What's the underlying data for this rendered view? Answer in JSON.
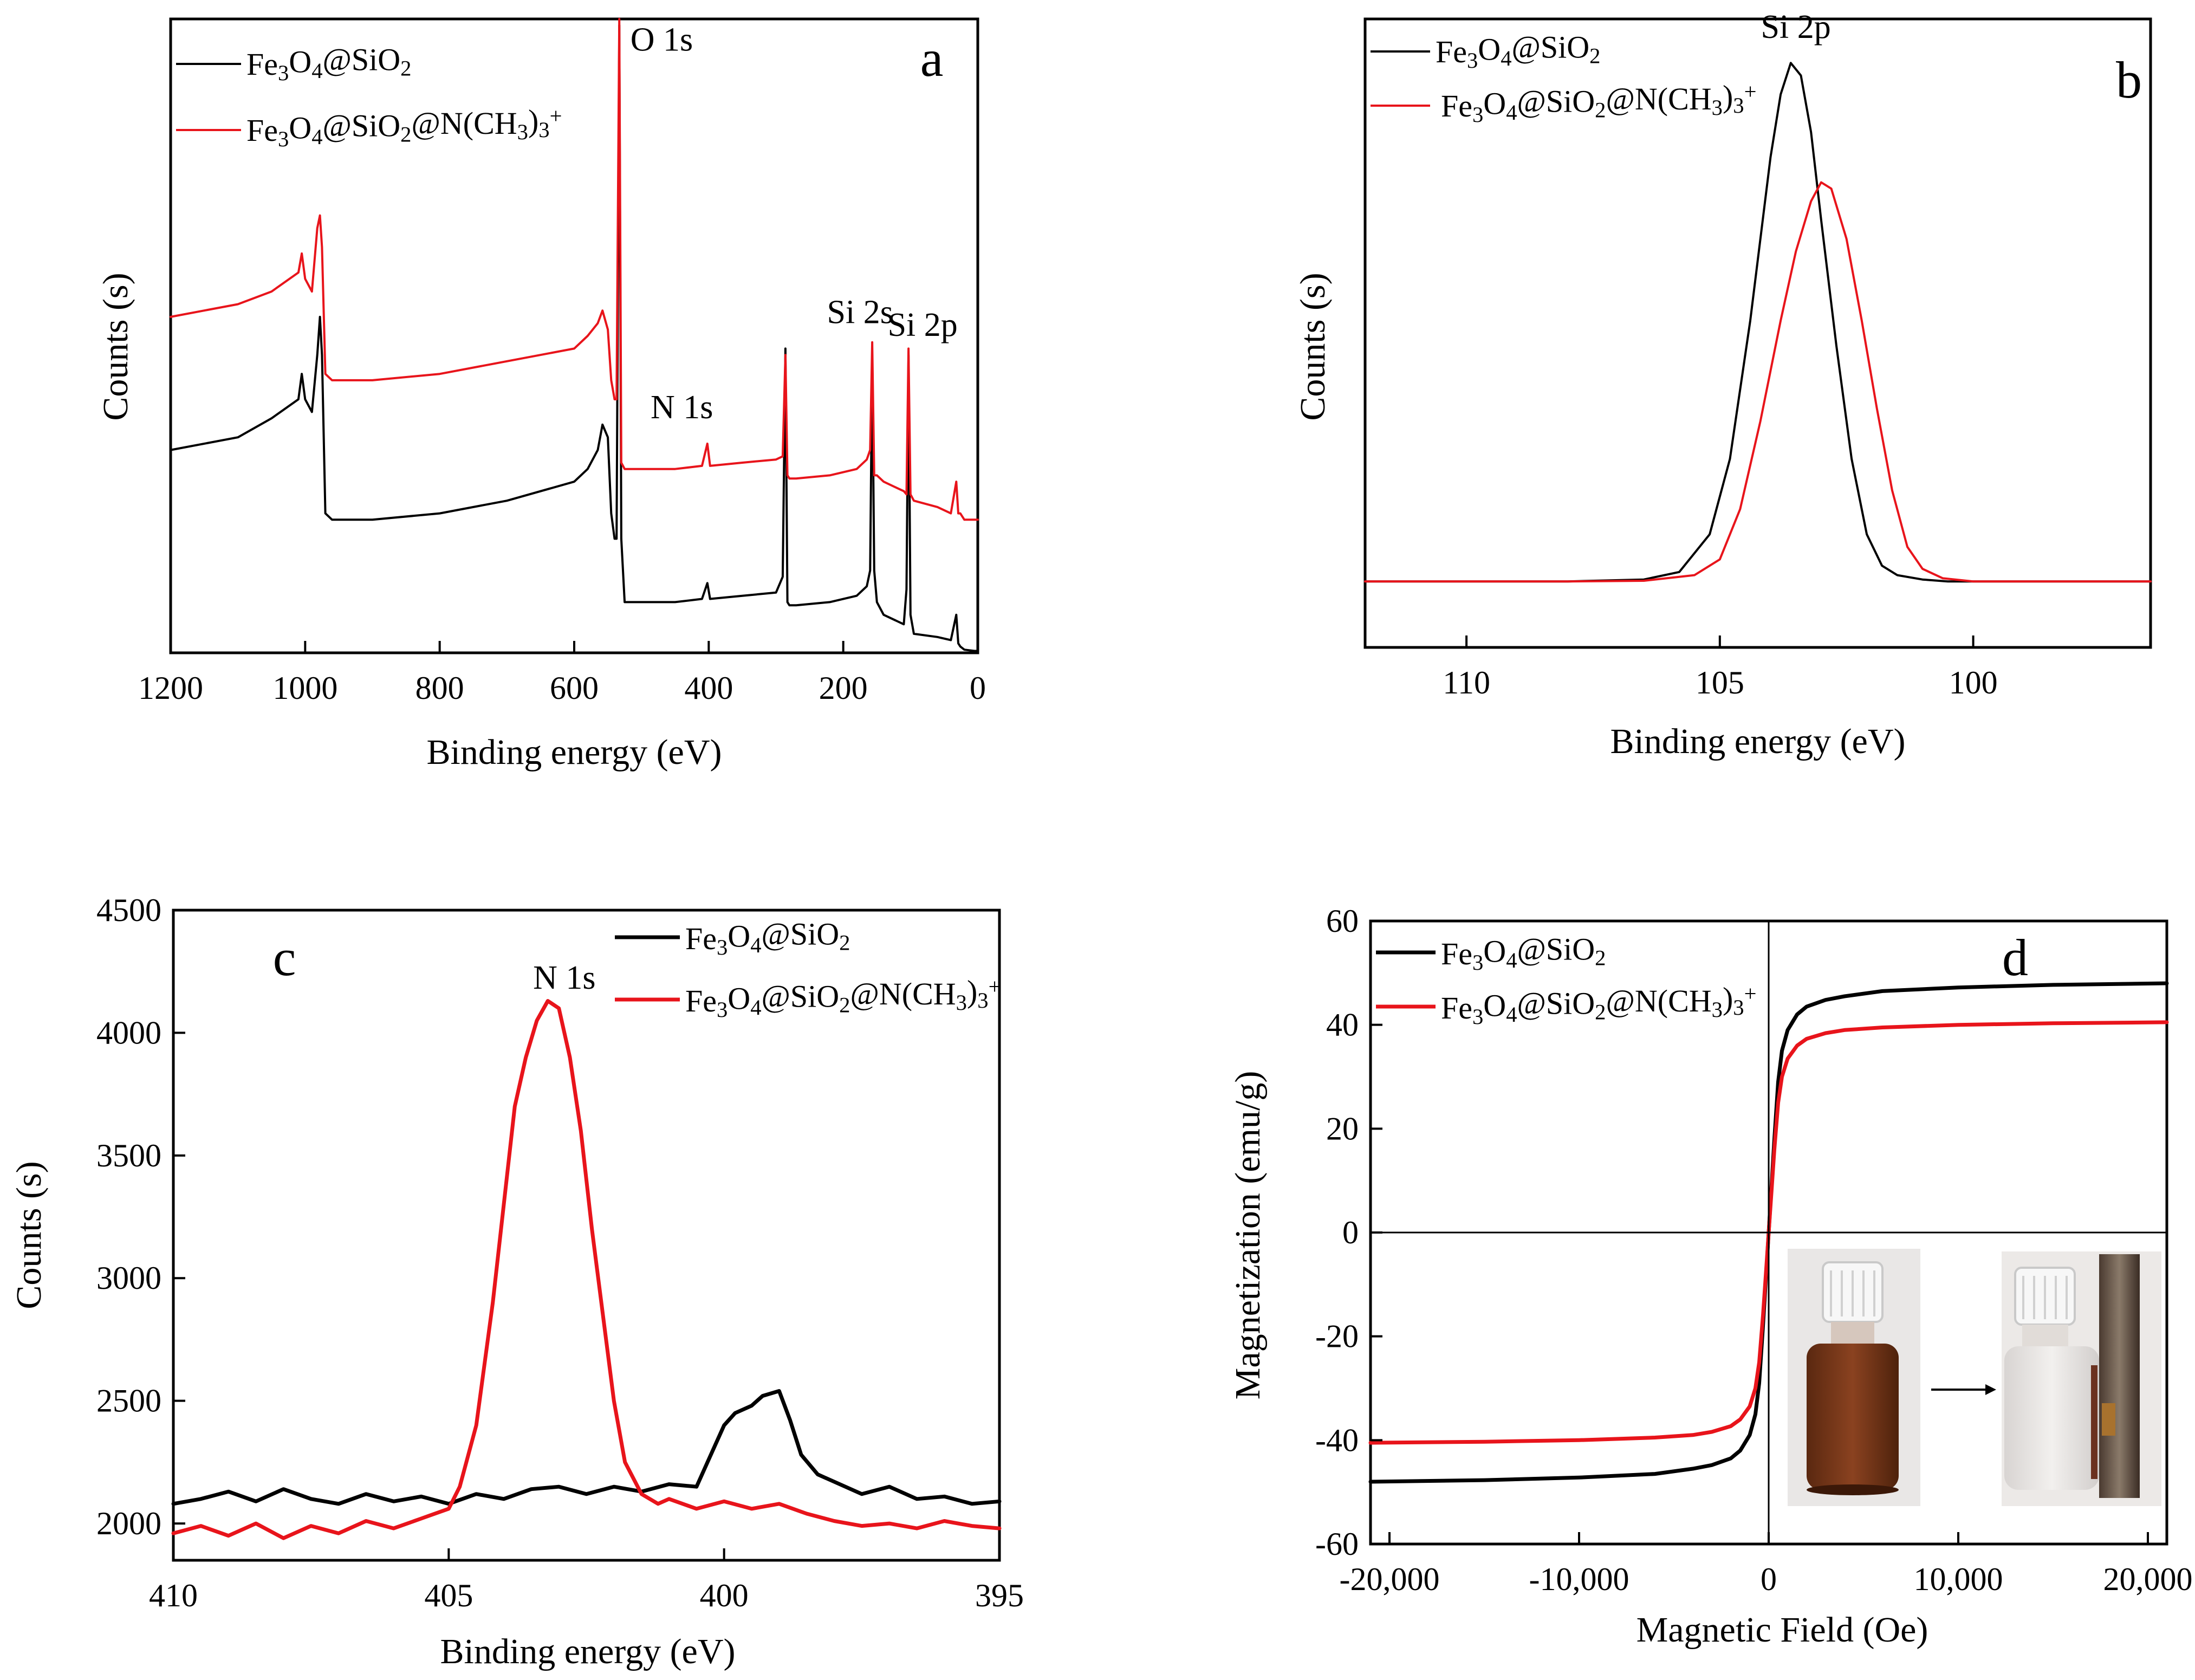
{
  "legend": {
    "series_a": "Fe3O4@SiO2",
    "series_b": "Fe3O4@SiO2@N(CH3)3+"
  },
  "colors": {
    "series_a": "#000000",
    "series_b": "#e8141b",
    "axis": "#000000"
  },
  "chart_data": [
    {
      "id": "a",
      "type": "line",
      "panel_label": "a",
      "xlabel": "Binding energy (eV)",
      "ylabel": "Counts (s)",
      "xlim": [
        1200,
        0
      ],
      "ylim": [
        0,
        100
      ],
      "x_ticks": [
        1200,
        1000,
        800,
        600,
        400,
        200,
        0
      ],
      "x_tick_labels": [
        "1200",
        "1000",
        "800",
        "600",
        "400",
        "200",
        "0"
      ],
      "y_ticks": [],
      "annotations": [
        {
          "text": "O 1s",
          "x": 470,
          "y": 95
        },
        {
          "text": "N 1s",
          "x": 440,
          "y": 37
        },
        {
          "text": "Si 2s",
          "x": 175,
          "y": 52
        },
        {
          "text": "Si 2p",
          "x": 82,
          "y": 50
        }
      ],
      "series": [
        {
          "name": "Fe3O4@SiO2",
          "color": "#000000",
          "width": 4,
          "x": [
            1200,
            1100,
            1050,
            1010,
            1005,
            1000,
            990,
            982,
            978,
            975,
            970,
            960,
            900,
            800,
            700,
            600,
            580,
            565,
            558,
            550,
            545,
            540,
            537,
            533,
            530,
            525,
            520,
            500,
            450,
            410,
            402,
            398,
            350,
            300,
            290,
            286,
            283,
            280,
            270,
            220,
            180,
            165,
            160,
            157,
            154,
            150,
            140,
            120,
            110,
            106,
            103,
            100,
            95,
            60,
            40,
            32,
            29,
            26,
            20,
            5,
            0
          ],
          "y": [
            32,
            34,
            37,
            40,
            44,
            40,
            38,
            47,
            53,
            47,
            22,
            21,
            21,
            22,
            24,
            27,
            29,
            32,
            36,
            34,
            22,
            18,
            18,
            99,
            18,
            8,
            8,
            8,
            8,
            8.5,
            11,
            8.5,
            9,
            9.5,
            12,
            48,
            8,
            7.5,
            7.5,
            8,
            9,
            10.5,
            13,
            47,
            13,
            8,
            6,
            5,
            4.5,
            10,
            47,
            6,
            3,
            2.5,
            2,
            6,
            1.5,
            1,
            0.5,
            0.3,
            0.3
          ]
        },
        {
          "name": "Fe3O4@SiO2@N(CH3)3+",
          "color": "#e8141b",
          "width": 4,
          "x": [
            1200,
            1100,
            1050,
            1010,
            1005,
            1000,
            990,
            982,
            978,
            975,
            970,
            960,
            900,
            800,
            700,
            600,
            580,
            565,
            558,
            550,
            545,
            540,
            537,
            533,
            530,
            525,
            520,
            500,
            450,
            410,
            402,
            398,
            350,
            300,
            290,
            286,
            283,
            280,
            270,
            220,
            180,
            165,
            160,
            157,
            154,
            150,
            140,
            120,
            110,
            106,
            103,
            100,
            95,
            60,
            40,
            32,
            29,
            26,
            20,
            5,
            0
          ],
          "y": [
            53,
            55,
            57,
            60,
            63,
            59,
            57,
            67,
            69,
            64,
            44,
            43,
            43,
            44,
            46,
            48,
            50,
            52,
            54,
            51,
            43,
            40,
            40,
            100,
            30,
            29,
            29,
            29,
            29,
            29.5,
            33,
            29.5,
            30,
            30.5,
            31,
            47,
            28,
            27.5,
            27.5,
            28,
            29,
            30.5,
            32,
            49,
            28,
            28,
            27,
            26,
            25.5,
            25,
            48,
            25,
            24,
            23,
            22,
            27,
            22,
            22,
            21,
            21,
            21
          ]
        }
      ]
    },
    {
      "id": "b",
      "type": "line",
      "panel_label": "b",
      "xlabel": "Binding energy (eV)",
      "ylabel": "Counts (s)",
      "xlim": [
        112,
        96.5
      ],
      "ylim": [
        0,
        100
      ],
      "x_ticks": [
        110,
        105,
        100
      ],
      "x_tick_labels": [
        "110",
        "105",
        "100"
      ],
      "y_ticks": [],
      "annotations": [
        {
          "text": "Si 2p",
          "x": 103.5,
          "y": 97
        }
      ],
      "series": [
        {
          "name": "Fe3O4@SiO2",
          "color": "#000000",
          "width": 4,
          "x": [
            112,
            108,
            106.5,
            105.8,
            105.2,
            104.8,
            104.4,
            104.0,
            103.8,
            103.6,
            103.4,
            103.2,
            103.0,
            102.7,
            102.4,
            102.1,
            101.8,
            101.5,
            101.0,
            100.5,
            98,
            96.5
          ],
          "y": [
            10.5,
            10.5,
            10.8,
            12,
            18,
            30,
            52,
            78,
            88,
            93,
            91,
            82,
            68,
            48,
            30,
            18,
            13,
            11.5,
            10.8,
            10.5,
            10.5,
            10.5
          ]
        },
        {
          "name": "Fe3O4@SiO2@N(CH3)3+",
          "color": "#e8141b",
          "width": 4,
          "x": [
            112,
            108,
            106.5,
            105.5,
            105.0,
            104.6,
            104.2,
            103.8,
            103.5,
            103.2,
            103.0,
            102.8,
            102.5,
            102.2,
            101.9,
            101.6,
            101.3,
            101.0,
            100.6,
            100.0,
            98,
            96.5
          ],
          "y": [
            10.5,
            10.5,
            10.6,
            11.5,
            14,
            22,
            36,
            52,
            63,
            71,
            74,
            73,
            65,
            52,
            38,
            25,
            16,
            12.5,
            11,
            10.5,
            10.5,
            10.5
          ]
        }
      ]
    },
    {
      "id": "c",
      "type": "line",
      "panel_label": "c",
      "xlabel": "Binding energy (eV)",
      "ylabel": "Counts (s)",
      "xlim": [
        410,
        395
      ],
      "ylim": [
        1850,
        4500
      ],
      "x_ticks": [
        410,
        405,
        400,
        395
      ],
      "x_tick_labels": [
        "410",
        "405",
        "400",
        "395"
      ],
      "y_ticks": [
        2000,
        2500,
        3000,
        3500,
        4000,
        4500
      ],
      "y_tick_labels": [
        "2000",
        "2500",
        "3000",
        "3500",
        "4000",
        "4500"
      ],
      "annotations": [
        {
          "text": "N 1s",
          "x": 402.9,
          "y": 4180
        }
      ],
      "series": [
        {
          "name": "Fe3O4@SiO2",
          "color": "#000000",
          "width": 7,
          "x": [
            410,
            409.5,
            409,
            408.5,
            408,
            407.5,
            407,
            406.5,
            406,
            405.5,
            405,
            404.5,
            404,
            403.5,
            403,
            402.5,
            402,
            401.5,
            401,
            400.5,
            400.2,
            400.0,
            399.8,
            399.5,
            399.3,
            399.0,
            398.8,
            398.6,
            398.3,
            398.0,
            397.5,
            397,
            396.5,
            396,
            395.5,
            395
          ],
          "y": [
            2080,
            2100,
            2130,
            2090,
            2140,
            2100,
            2080,
            2120,
            2090,
            2110,
            2080,
            2120,
            2100,
            2140,
            2150,
            2120,
            2150,
            2130,
            2160,
            2150,
            2300,
            2400,
            2450,
            2480,
            2520,
            2540,
            2420,
            2280,
            2200,
            2170,
            2120,
            2150,
            2100,
            2110,
            2080,
            2090
          ]
        },
        {
          "name": "Fe3O4@SiO2@N(CH3)3+",
          "color": "#e8141b",
          "width": 7,
          "x": [
            410,
            409.5,
            409,
            408.5,
            408,
            407.5,
            407,
            406.5,
            406,
            405.5,
            405,
            404.8,
            404.5,
            404.2,
            404.0,
            403.8,
            403.6,
            403.4,
            403.2,
            403.0,
            402.8,
            402.6,
            402.4,
            402.2,
            402.0,
            401.8,
            401.5,
            401.2,
            401.0,
            400.5,
            400,
            399.5,
            399,
            398.5,
            398,
            397.5,
            397,
            396.5,
            396,
            395.5,
            395
          ],
          "y": [
            1960,
            1990,
            1950,
            2000,
            1940,
            1990,
            1960,
            2010,
            1980,
            2020,
            2060,
            2150,
            2400,
            2900,
            3300,
            3700,
            3900,
            4050,
            4130,
            4100,
            3900,
            3600,
            3200,
            2850,
            2500,
            2250,
            2120,
            2080,
            2100,
            2060,
            2090,
            2060,
            2080,
            2040,
            2010,
            1990,
            2000,
            1980,
            2010,
            1990,
            1980
          ]
        }
      ]
    },
    {
      "id": "d",
      "type": "line",
      "panel_label": "d",
      "xlabel": "Magnetic Field (Oe)",
      "ylabel": "Magnetization (emu/g)",
      "xlim": [
        -21000,
        21000
      ],
      "ylim": [
        -60,
        60
      ],
      "x_ticks": [
        -20000,
        -10000,
        0,
        10000,
        20000
      ],
      "x_tick_labels": [
        "-20,000",
        "-10,000",
        "0",
        "10,000",
        "20,000"
      ],
      "y_ticks": [
        -60,
        -40,
        -20,
        0,
        20,
        40,
        60
      ],
      "y_tick_labels": [
        "-60",
        "-40",
        "-20",
        "0",
        "20",
        "40",
        "60"
      ],
      "annotations": [],
      "series": [
        {
          "name": "Fe3O4@SiO2",
          "color": "#000000",
          "width": 7,
          "x": [
            -21000,
            -15000,
            -10000,
            -6000,
            -4000,
            -3000,
            -2000,
            -1500,
            -1000,
            -700,
            -500,
            -300,
            -150,
            0,
            150,
            300,
            500,
            700,
            1000,
            1500,
            2000,
            3000,
            4000,
            6000,
            10000,
            15000,
            21000
          ],
          "y": [
            -48,
            -47.7,
            -47.2,
            -46.5,
            -45.5,
            -44.8,
            -43.5,
            -42,
            -39,
            -35,
            -29,
            -18,
            -9,
            0,
            9,
            18,
            29,
            35,
            39,
            42,
            43.5,
            44.8,
            45.5,
            46.5,
            47.2,
            47.7,
            48
          ]
        },
        {
          "name": "Fe3O4@SiO2@N(CH3)3+",
          "color": "#e8141b",
          "width": 7,
          "x": [
            -21000,
            -15000,
            -10000,
            -6000,
            -4000,
            -3000,
            -2000,
            -1500,
            -1000,
            -700,
            -500,
            -300,
            -150,
            0,
            150,
            300,
            500,
            700,
            1000,
            1500,
            2000,
            3000,
            4000,
            6000,
            10000,
            15000,
            21000
          ],
          "y": [
            -40.5,
            -40.3,
            -40,
            -39.5,
            -39,
            -38.4,
            -37.3,
            -36,
            -33.5,
            -30,
            -25,
            -16,
            -8,
            0,
            8,
            16,
            25,
            30,
            33.5,
            36,
            37.3,
            38.4,
            39,
            39.5,
            40,
            40.3,
            40.5
          ]
        }
      ]
    }
  ]
}
